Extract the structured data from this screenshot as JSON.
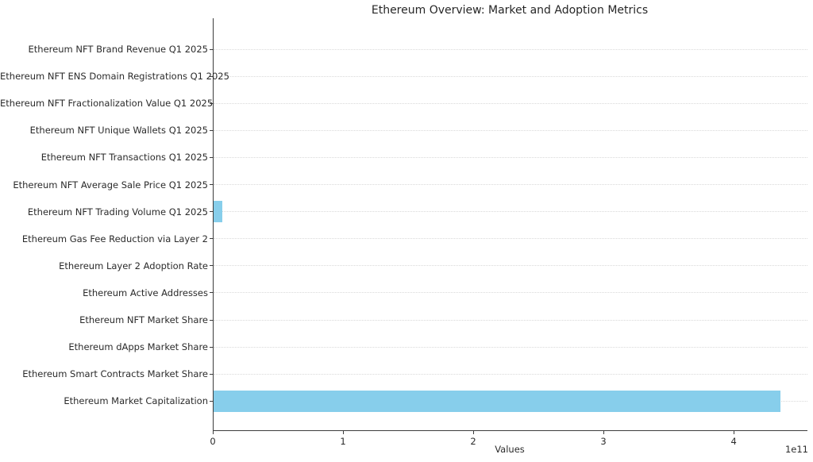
{
  "chart_data": {
    "type": "bar",
    "orientation": "horizontal",
    "title": "Ethereum Overview: Market and Adoption Metrics",
    "xlabel": "Values",
    "ylabel": "",
    "axis_offset_text": "1e11",
    "xlim": [
      0,
      456000000000
    ],
    "x_ticks": [
      0,
      100000000000,
      200000000000,
      300000000000,
      400000000000
    ],
    "x_tick_labels": [
      "0",
      "1",
      "2",
      "3",
      "4"
    ],
    "grid": "horizontal-dotted",
    "legend": "none",
    "bar_color": "#87CEEB",
    "categories_top_to_bottom": [
      "Ethereum NFT Brand Revenue Q1 2025",
      "Ethereum NFT ENS Domain Registrations Q1 2025",
      "Ethereum NFT Fractionalization Value Q1 2025",
      "Ethereum NFT Unique Wallets Q1 2025",
      "Ethereum NFT Transactions Q1 2025",
      "Ethereum NFT Average Sale Price Q1 2025",
      "Ethereum NFT Trading Volume Q1 2025",
      "Ethereum Gas Fee Reduction via Layer 2",
      "Ethereum Layer 2 Adoption Rate",
      "Ethereum Active Addresses",
      "Ethereum NFT Market Share",
      "Ethereum dApps Market Share",
      "Ethereum Smart Contracts Market Share",
      "Ethereum Market Capitalization"
    ],
    "values_top_to_bottom": [
      0,
      0,
      0,
      0,
      0,
      0,
      6500000000,
      0,
      0,
      0,
      0,
      0,
      0,
      435000000000
    ]
  }
}
